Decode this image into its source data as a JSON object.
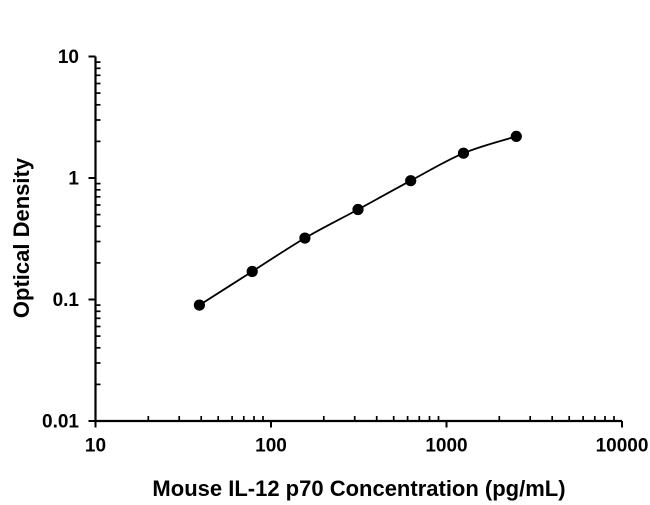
{
  "page": {
    "background": "#ffffff",
    "text_color": "#000000"
  },
  "chart_data": {
    "type": "scatter",
    "subtype": "line-with-markers",
    "title": "",
    "xlabel": "Mouse IL-12 p70 Concentration (pg/mL)",
    "ylabel": "Optical Density",
    "x_scale": "log",
    "y_scale": "log",
    "xlim": [
      10,
      10000
    ],
    "ylim": [
      0.01,
      10
    ],
    "x_tick_values": [
      10,
      100,
      1000,
      10000
    ],
    "x_tick_labels": [
      "10",
      "100",
      "1000",
      "10000"
    ],
    "y_tick_values": [
      0.01,
      0.1,
      1,
      10
    ],
    "y_tick_labels": [
      "0.01",
      "0.1",
      "1",
      "10"
    ],
    "grid": false,
    "legend": false,
    "axis_color": "#000000",
    "series": [
      {
        "marker": "filled-circle",
        "marker_color": "#000000",
        "line_color": "#000000",
        "points": [
          {
            "x": 39.1,
            "y": 0.09
          },
          {
            "x": 78.1,
            "y": 0.17
          },
          {
            "x": 156,
            "y": 0.32
          },
          {
            "x": 313,
            "y": 0.55
          },
          {
            "x": 625,
            "y": 0.95
          },
          {
            "x": 1250,
            "y": 1.6
          },
          {
            "x": 2500,
            "y": 2.2
          }
        ]
      }
    ]
  }
}
